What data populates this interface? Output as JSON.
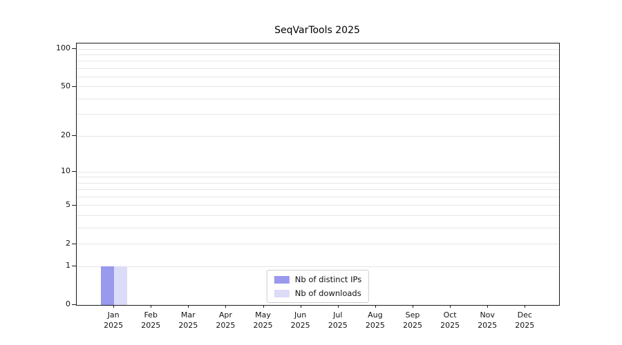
{
  "chart_data": {
    "type": "bar",
    "title": "SeqVarTools 2025",
    "x_categories": [
      "Jan",
      "Feb",
      "Mar",
      "Apr",
      "May",
      "Jun",
      "Jul",
      "Aug",
      "Sep",
      "Oct",
      "Nov",
      "Dec"
    ],
    "x_year": "2025",
    "series": [
      {
        "name": "Nb of distinct IPs",
        "color": "#9999ee",
        "values": [
          1,
          0,
          0,
          0,
          0,
          0,
          0,
          0,
          0,
          0,
          0,
          0
        ]
      },
      {
        "name": "Nb of downloads",
        "color": "#dcdcf8",
        "values": [
          1,
          0,
          0,
          0,
          0,
          0,
          0,
          0,
          0,
          0,
          0,
          0
        ]
      }
    ],
    "yscale": "log10(1+v)",
    "ylim": [
      0,
      100
    ],
    "ytick_values": [
      0,
      1,
      2,
      5,
      10,
      20,
      50,
      100
    ],
    "ytick_labels": [
      "0",
      "1",
      "2",
      "5",
      "10",
      "20",
      "50",
      "100"
    ],
    "minor_gridline_values": [
      1,
      2,
      3,
      4,
      5,
      6,
      7,
      8,
      9,
      10,
      20,
      30,
      40,
      50,
      60,
      70,
      80,
      90,
      100
    ],
    "grid": true,
    "legend_position": "bottom-center"
  }
}
